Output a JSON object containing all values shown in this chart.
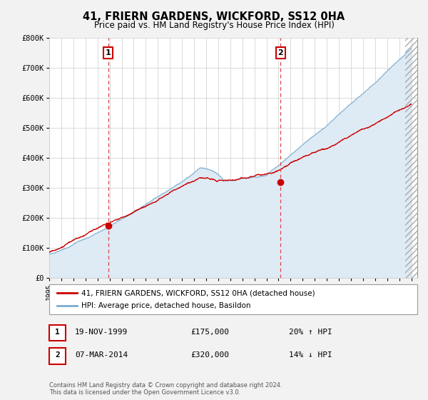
{
  "title": "41, FRIERN GARDENS, WICKFORD, SS12 0HA",
  "subtitle": "Price paid vs. HM Land Registry's House Price Index (HPI)",
  "ylim": [
    0,
    800000
  ],
  "xlim_start": 1995.0,
  "xlim_end": 2025.5,
  "yticks": [
    0,
    100000,
    200000,
    300000,
    400000,
    500000,
    600000,
    700000,
    800000
  ],
  "ytick_labels": [
    "£0",
    "£100K",
    "£200K",
    "£300K",
    "£400K",
    "£500K",
    "£600K",
    "£700K",
    "£800K"
  ],
  "xticks": [
    1995,
    1996,
    1997,
    1998,
    1999,
    2000,
    2001,
    2002,
    2003,
    2004,
    2005,
    2006,
    2007,
    2008,
    2009,
    2010,
    2011,
    2012,
    2013,
    2014,
    2015,
    2016,
    2017,
    2018,
    2019,
    2020,
    2021,
    2022,
    2023,
    2024,
    2025
  ],
  "price_paid_color": "#cc0000",
  "hpi_color": "#7aadcf",
  "hpi_fill_color": "#deeaf4",
  "plot_bg_color": "#ffffff",
  "grid_color": "#cccccc",
  "marker1_x": 1999.89,
  "marker1_y": 175000,
  "marker2_x": 2014.18,
  "marker2_y": 320000,
  "vline1_x": 1999.89,
  "vline2_x": 2014.18,
  "legend_label1": "41, FRIERN GARDENS, WICKFORD, SS12 0HA (detached house)",
  "legend_label2": "HPI: Average price, detached house, Basildon",
  "annotation1_date": "19-NOV-1999",
  "annotation1_price": "£175,000",
  "annotation1_hpi": "20% ↑ HPI",
  "annotation2_date": "07-MAR-2014",
  "annotation2_price": "£320,000",
  "annotation2_hpi": "14% ↓ HPI",
  "footer": "Contains HM Land Registry data © Crown copyright and database right 2024.\nThis data is licensed under the Open Government Licence v3.0."
}
